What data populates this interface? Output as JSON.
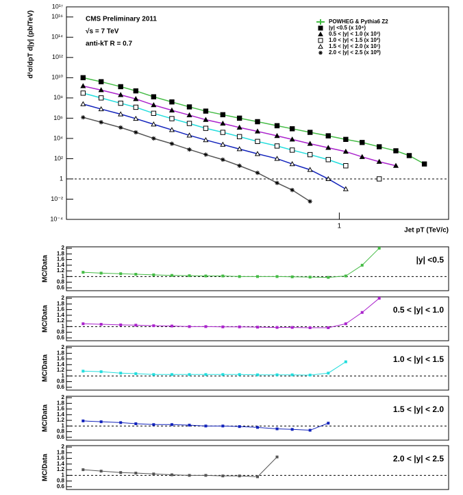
{
  "chart_data": [
    {
      "type": "scatter",
      "title": "CMS Preliminary 2011",
      "subtitle": "√s = 7 TeV",
      "annotation": "anti-kT R = 0.7",
      "ylabel": "d²σ/dpT d|y| (pb/TeV)",
      "xlabel": "Jet pT (TeV/c)",
      "log_x": true,
      "log_y": true,
      "xlim": [
        0.018,
        5
      ],
      "xticks": [
        1
      ],
      "ylim": [
        0.0001,
        1e+17
      ],
      "yticks": [
        {
          "value": 1e+17,
          "label": "10¹⁷"
        },
        {
          "value": 1e+16,
          "label": "10¹⁶"
        },
        {
          "value": 100000000000000.0,
          "label": "10¹⁴"
        },
        {
          "value": 1000000000000.0,
          "label": "10¹²"
        },
        {
          "value": 10000000000.0,
          "label": "10¹⁰"
        },
        {
          "value": 100000000.0,
          "label": "10⁸"
        },
        {
          "value": 1000000.0,
          "label": "10⁶"
        },
        {
          "value": 10000.0,
          "label": "10⁴"
        },
        {
          "value": 100,
          "label": "10²"
        },
        1,
        {
          "value": 0.01,
          "label": "10⁻²"
        },
        {
          "value": 0.0001,
          "label": "10⁻⁴"
        }
      ],
      "mc_label": "POWHEG & Pythia6 Z2",
      "mc_color": "#44bb44",
      "reference_line": 1,
      "x": [
        0.023,
        0.03,
        0.04,
        0.05,
        0.065,
        0.085,
        0.11,
        0.14,
        0.18,
        0.23,
        0.3,
        0.4,
        0.5,
        0.65,
        0.85,
        1.1,
        1.4,
        1.8,
        2.3,
        2.8,
        3.5
      ],
      "series": [
        {
          "name": "|y| <0.5 (x 10⁴)",
          "color": "#44bb44",
          "marker": "square-filled",
          "values": [
            10000000000.0,
            4000000000.0,
            1300000000.0,
            500000000.0,
            130000000.0,
            40000000.0,
            13000000.0,
            5000000.0,
            2200000.0,
            1000000.0,
            450000.0,
            180000.0,
            90000.0,
            40000.0,
            18000.0,
            8000.0,
            4000.0,
            1500.0,
            600,
            200,
            30
          ]
        },
        {
          "name": "0.5 < |y| < 1.0 (x 10³)",
          "color": "#aa22cc",
          "marker": "triangle-filled",
          "values": [
            1500000000.0,
            600000000.0,
            200000000.0,
            80000000.0,
            20000000.0,
            6000000.0,
            2000000.0,
            700000.0,
            300000.0,
            120000.0,
            50000.0,
            18000.0,
            8000.0,
            3000.0,
            1200.0,
            500,
            150,
            50,
            20,
            null,
            null
          ]
        },
        {
          "name": "1.0 < |y| < 1.5 (x 10²)",
          "color": "#22dddd",
          "marker": "square-open",
          "values": [
            300000000.0,
            100000000.0,
            30000000.0,
            12000000.0,
            3000000.0,
            900000.0,
            300000.0,
            100000.0,
            40000.0,
            15000.0,
            5000.0,
            1800.0,
            700,
            250,
            80,
            20,
            null,
            1,
            null,
            null,
            null
          ]
        },
        {
          "name": "1.5 < |y| < 2.0 (x 10¹)",
          "color": "#1122bb",
          "marker": "triangle-open",
          "values": [
            25000000.0,
            8000000.0,
            2500000.0,
            900000.0,
            250000.0,
            70000.0,
            20000.0,
            7000.0,
            2500.0,
            900,
            300,
            100,
            30,
            8,
            1,
            0.1,
            null,
            null,
            null,
            null,
            null
          ]
        },
        {
          "name": "2.0 < |y| < 2.5 (x 10⁰)",
          "color": "#555555",
          "marker": "star",
          "values": [
            1200000.0,
            400000.0,
            120000.0,
            40000.0,
            10000.0,
            3000.0,
            800,
            250,
            80,
            20,
            4,
            0.4,
            0.08,
            0.006,
            null,
            null,
            null,
            null,
            null,
            null,
            null
          ]
        }
      ]
    },
    {
      "type": "line",
      "title": "|y| <0.5",
      "ylabel": "MC/Data",
      "color": "#44bb44",
      "log_x": true,
      "xlim": [
        0.018,
        5
      ],
      "ylim": [
        0.5,
        2.05
      ],
      "yticks": [
        0.6,
        0.8,
        1,
        1.2,
        1.4,
        1.6,
        1.8,
        2
      ],
      "reference_line": 1,
      "x": [
        0.023,
        0.03,
        0.04,
        0.05,
        0.065,
        0.085,
        0.11,
        0.14,
        0.18,
        0.23,
        0.3,
        0.4,
        0.5,
        0.65,
        0.85,
        1.1,
        1.4,
        1.8,
        2.3,
        2.8,
        3.5
      ],
      "values": [
        1.15,
        1.12,
        1.1,
        1.08,
        1.06,
        1.04,
        1.03,
        1.02,
        1.02,
        1.0,
        1.0,
        1.0,
        0.99,
        0.98,
        0.97,
        1.02,
        1.4,
        2.0,
        null,
        null,
        null
      ]
    },
    {
      "type": "line",
      "title": "0.5 < |y| < 1.0",
      "ylabel": "MC/Data",
      "color": "#aa22cc",
      "log_x": true,
      "xlim": [
        0.018,
        5
      ],
      "ylim": [
        0.5,
        2.05
      ],
      "yticks": [
        0.6,
        0.8,
        1,
        1.2,
        1.4,
        1.6,
        1.8,
        2
      ],
      "reference_line": 1,
      "x": [
        0.023,
        0.03,
        0.04,
        0.05,
        0.065,
        0.085,
        0.11,
        0.14,
        0.18,
        0.23,
        0.3,
        0.4,
        0.5,
        0.65,
        0.85,
        1.1,
        1.4,
        1.8,
        2.3,
        2.8,
        3.5
      ],
      "values": [
        1.1,
        1.08,
        1.06,
        1.05,
        1.03,
        1.02,
        1.0,
        1.0,
        0.99,
        0.99,
        0.98,
        0.97,
        0.97,
        0.96,
        0.96,
        1.1,
        1.5,
        2.0,
        null,
        null,
        null
      ]
    },
    {
      "type": "line",
      "title": "1.0 < |y| < 1.5",
      "ylabel": "MC/Data",
      "color": "#22dddd",
      "log_x": true,
      "xlim": [
        0.018,
        5
      ],
      "ylim": [
        0.5,
        2.05
      ],
      "yticks": [
        0.6,
        0.8,
        1,
        1.2,
        1.4,
        1.6,
        1.8,
        2
      ],
      "reference_line": 1,
      "x": [
        0.023,
        0.03,
        0.04,
        0.05,
        0.065,
        0.085,
        0.11,
        0.14,
        0.18,
        0.23,
        0.3,
        0.4,
        0.5,
        0.65,
        0.85,
        1.1,
        1.4,
        1.8,
        2.3,
        2.8,
        3.5
      ],
      "values": [
        1.17,
        1.15,
        1.1,
        1.08,
        1.05,
        1.05,
        1.05,
        1.05,
        1.05,
        1.05,
        1.04,
        1.04,
        1.04,
        1.03,
        1.1,
        1.5,
        null,
        null,
        null,
        null,
        null
      ]
    },
    {
      "type": "line",
      "title": "1.5 < |y| < 2.0",
      "ylabel": "MC/Data",
      "color": "#1122bb",
      "log_x": true,
      "xlim": [
        0.018,
        5
      ],
      "ylim": [
        0.5,
        2.05
      ],
      "yticks": [
        0.6,
        0.8,
        1,
        1.2,
        1.4,
        1.6,
        1.8,
        2
      ],
      "reference_line": 1,
      "x": [
        0.023,
        0.03,
        0.04,
        0.05,
        0.065,
        0.085,
        0.11,
        0.14,
        0.18,
        0.23,
        0.3,
        0.4,
        0.5,
        0.65,
        0.85,
        1.1,
        1.4,
        1.8,
        2.3,
        2.8,
        3.5
      ],
      "values": [
        1.18,
        1.15,
        1.12,
        1.08,
        1.05,
        1.05,
        1.03,
        1.0,
        1.0,
        0.98,
        0.95,
        0.9,
        0.88,
        0.85,
        1.1,
        null,
        null,
        null,
        null,
        null,
        null
      ]
    },
    {
      "type": "line",
      "title": "2.0 < |y| < 2.5",
      "ylabel": "MC/Data",
      "color": "#555555",
      "log_x": true,
      "xlim": [
        0.018,
        5
      ],
      "ylim": [
        0.5,
        2.05
      ],
      "yticks": [
        0.6,
        0.8,
        1,
        1.2,
        1.4,
        1.6,
        1.8,
        2
      ],
      "reference_line": 1,
      "x": [
        0.023,
        0.03,
        0.04,
        0.05,
        0.065,
        0.085,
        0.11,
        0.14,
        0.18,
        0.23,
        0.3,
        0.4,
        0.5,
        0.65,
        0.85,
        1.1,
        1.4,
        1.8,
        2.3,
        2.8,
        3.5
      ],
      "values": [
        1.2,
        1.15,
        1.1,
        1.08,
        1.05,
        1.02,
        1.0,
        1.0,
        0.98,
        0.98,
        0.95,
        1.65,
        null,
        null,
        null,
        null,
        null,
        null,
        null,
        null,
        null
      ]
    }
  ]
}
